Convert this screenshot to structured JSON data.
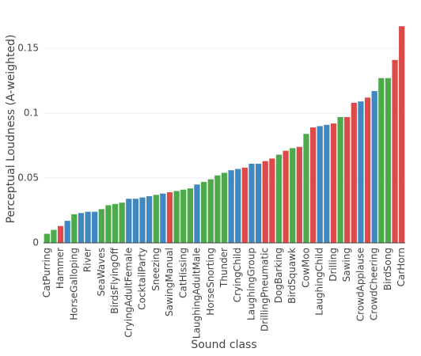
{
  "chart_data": {
    "type": "bar",
    "x_label": "Sound class",
    "y_label": "Perceptual Loudness (A-weighted)",
    "categories": [
      "CatPurring",
      null,
      "Hammer",
      null,
      "HorseGalloping",
      null,
      "River",
      null,
      "SeaWaves",
      null,
      "BirdsFlyingOff",
      null,
      "CryingAdultFemale",
      null,
      "CocktailParty",
      null,
      "Sneezing",
      null,
      "SawingManual",
      null,
      "CatHissing",
      null,
      "LaughingAdultMale",
      null,
      "HorseSnorting",
      null,
      "Thunder",
      null,
      "CryingChild",
      null,
      "LaughingGroup",
      null,
      "DrillingPneumatic",
      null,
      "DogBarking",
      null,
      "BirdSquawk",
      null,
      "CowMoo",
      null,
      "LaughingChild",
      null,
      "Drilling",
      null,
      "Sawing",
      null,
      "CrowdApplause",
      null,
      "CrowdCheering",
      null,
      "BirdSong",
      null,
      "CarHorn"
    ],
    "values": [
      0.007,
      0.01,
      0.013,
      0.017,
      0.022,
      0.023,
      0.024,
      0.024,
      0.026,
      0.029,
      0.03,
      0.031,
      0.034,
      0.034,
      0.035,
      0.036,
      0.037,
      0.038,
      0.039,
      0.04,
      0.041,
      0.042,
      0.045,
      0.047,
      0.049,
      0.052,
      0.054,
      0.056,
      0.057,
      0.058,
      0.061,
      0.061,
      0.063,
      0.065,
      0.068,
      0.071,
      0.073,
      0.074,
      0.084,
      0.089,
      0.09,
      0.091,
      0.092,
      0.097,
      0.097,
      0.108,
      0.109,
      0.112,
      0.117,
      0.127,
      0.127,
      0.141,
      0.167
    ],
    "colors": [
      "#4caa4a",
      "#4caa4a",
      "#dc4a4a",
      "#3f88c0",
      "#4caa4a",
      "#3f88c0",
      "#3f88c0",
      "#3f88c0",
      "#4caa4a",
      "#4caa4a",
      "#4caa4a",
      "#4caa4a",
      "#3f88c0",
      "#3f88c0",
      "#3f88c0",
      "#3f88c0",
      "#4caa4a",
      "#3f88c0",
      "#dc4a4a",
      "#4caa4a",
      "#4caa4a",
      "#4caa4a",
      "#3f88c0",
      "#4caa4a",
      "#4caa4a",
      "#4caa4a",
      "#4caa4a",
      "#3f88c0",
      "#3f88c0",
      "#dc4a4a",
      "#3f88c0",
      "#3f88c0",
      "#dc4a4a",
      "#dc4a4a",
      "#4caa4a",
      "#dc4a4a",
      "#4caa4a",
      "#dc4a4a",
      "#4caa4a",
      "#dc4a4a",
      "#3f88c0",
      "#3f88c0",
      "#dc4a4a",
      "#4caa4a",
      "#dc4a4a",
      "#dc4a4a",
      "#3f88c0",
      "#dc4a4a",
      "#3f88c0",
      "#4caa4a",
      "#4caa4a",
      "#dc4a4a",
      "#dc4a4a"
    ],
    "ylim": [
      0,
      0.175
    ],
    "yticks": [
      0,
      0.05,
      0.1,
      0.15
    ],
    "grid": true
  }
}
